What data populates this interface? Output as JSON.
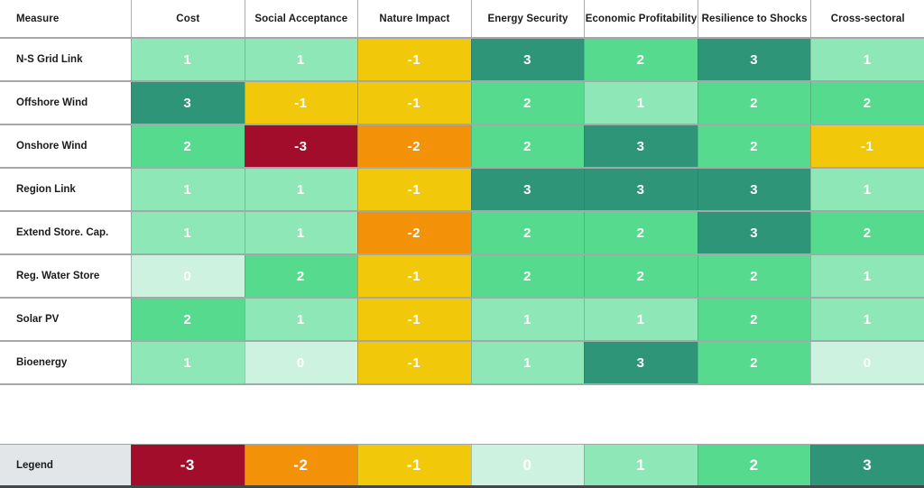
{
  "chart_data": {
    "type": "heatmap",
    "measure_header": "Measure",
    "columns": [
      "Cost",
      "Social Acceptance",
      "Nature Impact",
      "Energy Security",
      "Economic Profitability",
      "Resilience to Shocks",
      "Cross-sectoral"
    ],
    "rows": [
      {
        "label": "N-S Grid Link",
        "values": [
          1,
          1,
          -1,
          3,
          2,
          3,
          1
        ]
      },
      {
        "label": "Offshore Wind",
        "values": [
          3,
          -1,
          -1,
          2,
          1,
          2,
          2
        ]
      },
      {
        "label": "Onshore Wind",
        "values": [
          2,
          -3,
          -2,
          2,
          3,
          2,
          -1
        ]
      },
      {
        "label": "Region Link",
        "values": [
          1,
          1,
          -1,
          3,
          3,
          3,
          1
        ]
      },
      {
        "label": "Extend Store. Cap.",
        "values": [
          1,
          1,
          -2,
          2,
          2,
          3,
          2
        ]
      },
      {
        "label": "Reg. Water Store",
        "values": [
          0,
          2,
          -1,
          2,
          2,
          2,
          1
        ]
      },
      {
        "label": "Solar PV",
        "values": [
          2,
          1,
          -1,
          1,
          1,
          2,
          1
        ]
      },
      {
        "label": "Bioenergy",
        "values": [
          1,
          0,
          -1,
          1,
          3,
          2,
          0
        ]
      }
    ],
    "legend": {
      "label": "Legend",
      "values": [
        -3,
        -2,
        -1,
        0,
        1,
        2,
        3
      ]
    },
    "value_range": [
      -3,
      3
    ],
    "colors": {
      "-3": "#A30D2C",
      "-2": "#F39109",
      "-1": "#F2C80A",
      "0": "#CDF2DF",
      "1": "#8EE7B7",
      "2": "#56DB8E",
      "3": "#2F9579"
    },
    "ui_colors": {
      "legend_label_bg": "#E2E6E8",
      "grid_line": "#A3A8A8",
      "bottom_bar": "#41474A",
      "cell_text": "#FFFFFF",
      "label_text": "#1B1B1B"
    }
  }
}
